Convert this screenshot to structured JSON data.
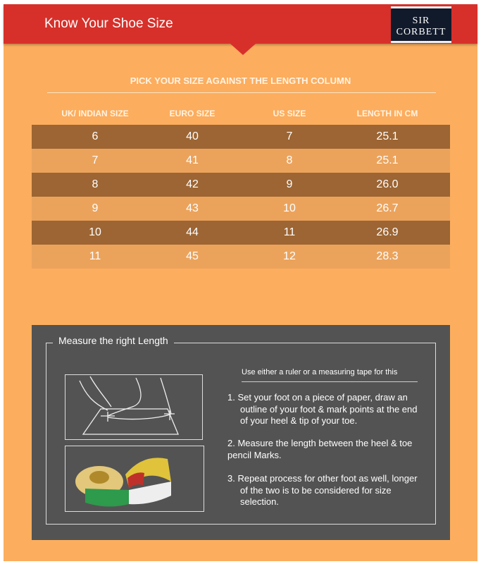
{
  "header": {
    "title": "Know Your Shoe Size",
    "logo": "SIR CORBETT"
  },
  "subtitle": "PICK YOUR SIZE AGAINST THE LENGTH COLUMN",
  "table": {
    "headers": [
      "UK/ INDIAN SIZE",
      "EURO SIZE",
      "US SIZE",
      "LENGTH IN CM"
    ],
    "rows": [
      [
        "6",
        "40",
        "7",
        "25.1"
      ],
      [
        "7",
        "41",
        "8",
        "25.1"
      ],
      [
        "8",
        "42",
        "9",
        "26.0"
      ],
      [
        "9",
        "43",
        "10",
        "26.7"
      ],
      [
        "10",
        "44",
        "11",
        "26.9"
      ],
      [
        "11",
        "45",
        "12",
        "28.3"
      ]
    ]
  },
  "measure": {
    "title": "Measure the right Length",
    "hint": "Use either a ruler or a measuring tape for this",
    "steps": [
      "1.  Set your foot on a piece of paper, draw an outline of your foot & mark points at the end of your heel & tip of your toe.",
      "2.  Measure the length between the heel & toe          pencil Marks.",
      "3.  Repeat process for other foot as well, longer of the two is to be considered for size selection."
    ]
  },
  "colors": {
    "header": "#d7302a",
    "background": "#fcad5e",
    "row_dark": "#9c6533",
    "row_light": "#eba35c",
    "panel": "#535353"
  }
}
